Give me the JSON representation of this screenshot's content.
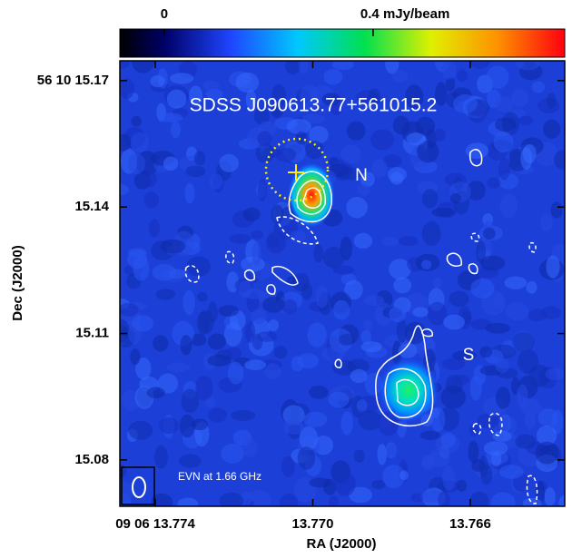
{
  "chart_data": {
    "type": "image",
    "xlabel": "RA (J2000)",
    "ylabel": "Dec (J2000)",
    "xlim": [
      13.7749,
      13.7636
    ],
    "xticks": [
      {
        "value": 13.774,
        "label": "09 06 13.774"
      },
      {
        "value": 13.77,
        "label": "13.770"
      },
      13.766
    ],
    "ylim": [
      15.069,
      15.1747
    ],
    "yticks": [
      {
        "value": 15.17,
        "label": "56 10 15.17"
      },
      15.14,
      15.11,
      15.08
    ],
    "colorbar": {
      "lim": [
        -0.085,
        0.767
      ],
      "ticks": [
        0,
        {
          "value": 0.4,
          "label": "0.4 mJy/beam"
        }
      ]
    },
    "annotations": [
      "SDSS J090613.77+561015.2",
      "N",
      "S",
      "EVN at 1.66 GHz"
    ]
  }
}
